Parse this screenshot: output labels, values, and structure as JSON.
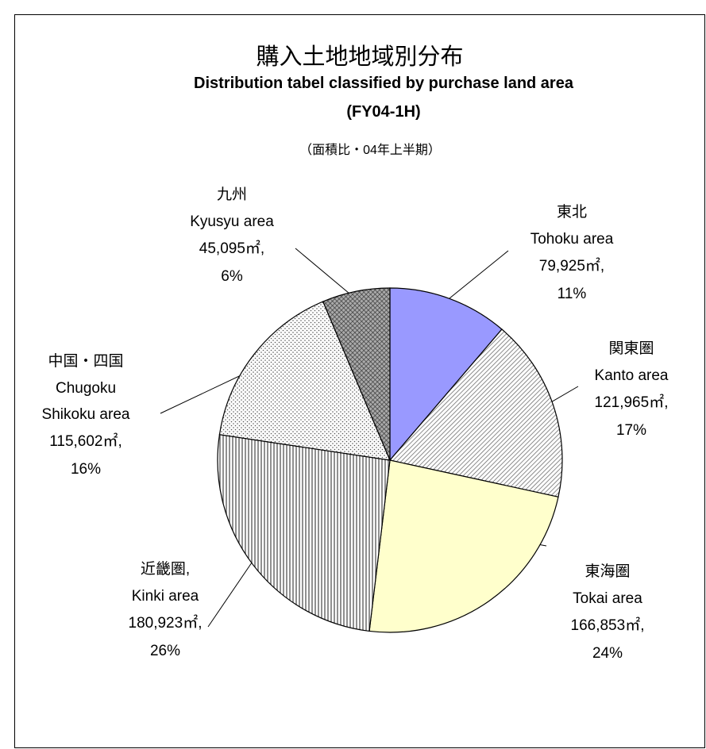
{
  "chart_data": {
    "type": "pie",
    "title": "購入土地地域別分布",
    "subtitle": "Distribution tabel classified by purchase land area",
    "period": "(FY04-1H)",
    "note": "（面積比・04年上半期）",
    "categories": [
      "東北",
      "関東圏",
      "東海圏",
      "近畿圏,",
      "中国・四国",
      "九州"
    ],
    "categories_en": [
      "Tohoku area",
      "Kanto area",
      "Tokai area",
      "Kinki area",
      "Chugoku\nShikoku area",
      "Kyusyu area"
    ],
    "values": [
      79925,
      121965,
      166853,
      180923,
      115602,
      45095
    ],
    "value_labels": [
      "79,925㎡,",
      "121,965㎡,",
      "166,853㎡,",
      "180,923㎡,",
      "115,602㎡,",
      "45,095㎡,"
    ],
    "percents": [
      11,
      17,
      24,
      26,
      16,
      6
    ],
    "percent_labels": [
      "11%",
      "17%",
      "24%",
      "26%",
      "16%",
      "6%"
    ],
    "colors": [
      "#9999ff",
      "hatch",
      "#ffffcc",
      "vlines",
      "dots",
      "crosshatch"
    ]
  }
}
